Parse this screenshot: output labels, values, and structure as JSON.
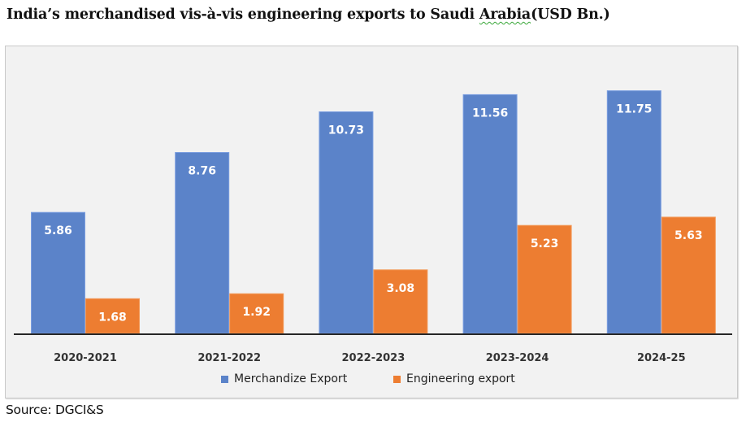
{
  "title_parts": {
    "before": "India’s merchandised vis-à-vis engineering exports to Saudi ",
    "flagged": "Arabia",
    "after": "(USD Bn.)"
  },
  "source": "Source: DGCI&S",
  "colors": {
    "merchandize": "#5b83c9",
    "engineering": "#ed7d31",
    "plot_bg": "#f2f2f2",
    "axis": "#262626"
  },
  "chart_data": {
    "type": "bar",
    "title": "India’s merchandised vis-à-vis engineering exports to Saudi Arabia(USD Bn.)",
    "xlabel": "",
    "ylabel": "",
    "ylim": [
      0,
      13
    ],
    "grid": false,
    "legend_position": "bottom",
    "categories": [
      "2020-2021",
      "2021-2022",
      "2022-2023",
      "2023-2024",
      "2024-25"
    ],
    "series": [
      {
        "name": "Merchandize Export",
        "values": [
          5.86,
          8.76,
          10.73,
          11.56,
          11.75
        ],
        "labels": [
          "5.86",
          "8.76",
          "10.73",
          "11.56",
          "11.75"
        ]
      },
      {
        "name": "Engineering export",
        "values": [
          1.68,
          1.92,
          3.08,
          5.23,
          5.63
        ],
        "labels": [
          "1.68",
          "1.92",
          "3.08",
          "5.23",
          "5.63"
        ]
      }
    ]
  }
}
